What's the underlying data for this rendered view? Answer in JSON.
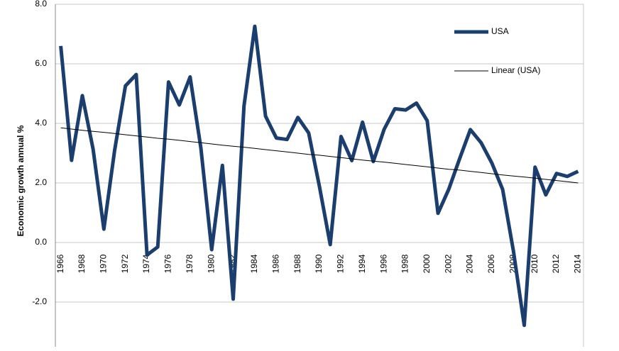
{
  "chart_data": {
    "type": "line",
    "y_label": "Economic growth annual %",
    "categories": [
      "1966",
      null,
      "1968",
      null,
      "1970",
      null,
      "1972",
      null,
      "1974",
      null,
      "1976",
      null,
      "1978",
      null,
      "1980",
      null,
      "1982",
      null,
      "1984",
      null,
      "1986",
      null,
      "1988",
      null,
      "1990",
      null,
      "1992",
      null,
      "1994",
      null,
      "1996",
      null,
      "1998",
      null,
      "2000",
      null,
      "2002",
      null,
      "2004",
      null,
      "2006",
      null,
      "2008",
      null,
      "2010",
      null,
      "2012",
      null,
      "2014"
    ],
    "series": [
      {
        "name": "USA",
        "color": "#1b3e6f",
        "values": [
          6.6,
          2.76,
          4.93,
          3.14,
          0.45,
          3.1,
          5.26,
          5.64,
          -0.42,
          -0.15,
          5.39,
          4.62,
          5.56,
          3.17,
          -0.24,
          2.59,
          -1.9,
          4.58,
          7.26,
          4.24,
          3.51,
          3.46,
          4.2,
          3.68,
          1.88,
          -0.07,
          3.56,
          2.75,
          4.04,
          2.72,
          3.8,
          4.49,
          4.45,
          4.68,
          4.09,
          0.98,
          1.79,
          2.81,
          3.79,
          3.35,
          2.67,
          1.78,
          -0.29,
          -2.78,
          2.53,
          1.6,
          2.32,
          2.22,
          2.39
        ]
      },
      {
        "name": "Linear (USA)",
        "color": "#000000",
        "values": [
          3.85,
          3.81,
          3.77,
          3.73,
          3.7,
          3.66,
          3.62,
          3.58,
          3.54,
          3.5,
          3.47,
          3.43,
          3.39,
          3.35,
          3.31,
          3.27,
          3.23,
          3.2,
          3.16,
          3.12,
          3.08,
          3.04,
          3.0,
          2.96,
          2.93,
          2.89,
          2.85,
          2.81,
          2.77,
          2.73,
          2.7,
          2.66,
          2.62,
          2.58,
          2.54,
          2.5,
          2.46,
          2.43,
          2.39,
          2.35,
          2.31,
          2.27,
          2.23,
          2.2,
          2.16,
          2.12,
          2.08,
          2.04,
          2.0
        ]
      }
    ],
    "ylim": [
      -3.5,
      8
    ],
    "yticks": [
      {
        "value": -2,
        "label": "-2.0"
      },
      {
        "value": 0,
        "label": "0.0"
      },
      {
        "value": 2,
        "label": "2.0"
      },
      {
        "value": 4,
        "label": "4.0"
      },
      {
        "value": 6,
        "label": "6.0"
      },
      {
        "value": 8,
        "label": "8.0"
      }
    ],
    "grid": true
  }
}
